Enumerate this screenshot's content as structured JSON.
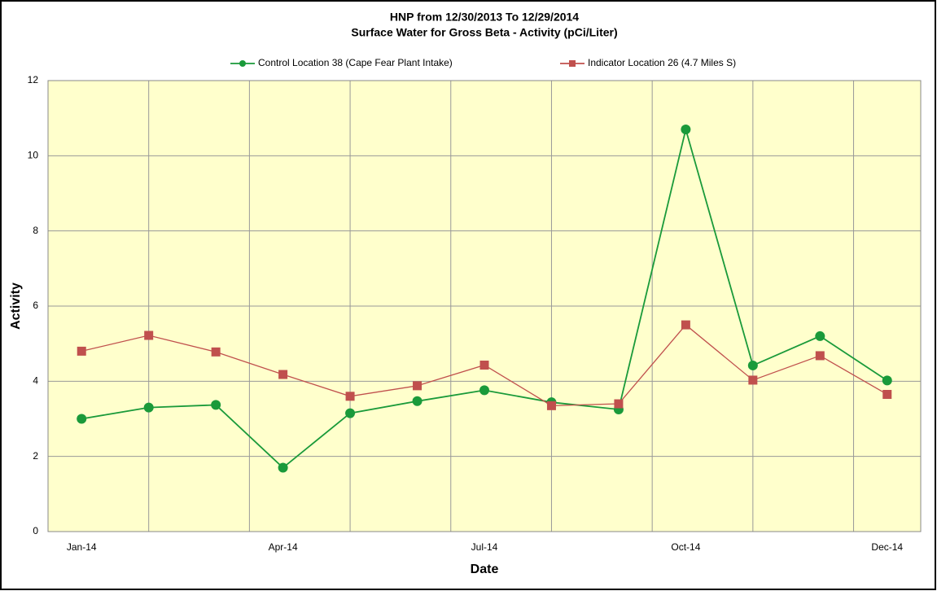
{
  "chart_data": {
    "type": "line",
    "title": "HNP from 12/30/2013 To 12/29/2014",
    "subtitle": "Surface Water for Gross Beta - Activity (pCi/Liter)",
    "xlabel": "Date",
    "ylabel": "Activity",
    "categories": [
      "Jan-14",
      null,
      null,
      "Apr-14",
      null,
      null,
      "Jul-14",
      null,
      null,
      "Oct-14",
      null,
      null,
      "Dec-14"
    ],
    "series": [
      {
        "name": "Control Location 38 (Cape Fear Plant Intake)",
        "color": "#1a9a3a",
        "marker": "circle",
        "values": [
          3.0,
          3.3,
          3.37,
          1.7,
          3.15,
          3.47,
          3.76,
          3.44,
          3.25,
          10.7,
          4.42,
          5.2,
          4.02
        ]
      },
      {
        "name": "Indicator Location 26 (4.7 Miles  S)",
        "color": "#c0504d",
        "marker": "square",
        "values": [
          4.8,
          5.22,
          4.78,
          4.18,
          3.6,
          3.88,
          4.43,
          3.35,
          3.4,
          5.5,
          4.03,
          4.68,
          3.65
        ]
      }
    ],
    "ylim": [
      0,
      12
    ],
    "yticks": [
      0,
      2,
      4,
      6,
      8,
      10,
      12
    ],
    "grid": true,
    "legend": "top"
  }
}
